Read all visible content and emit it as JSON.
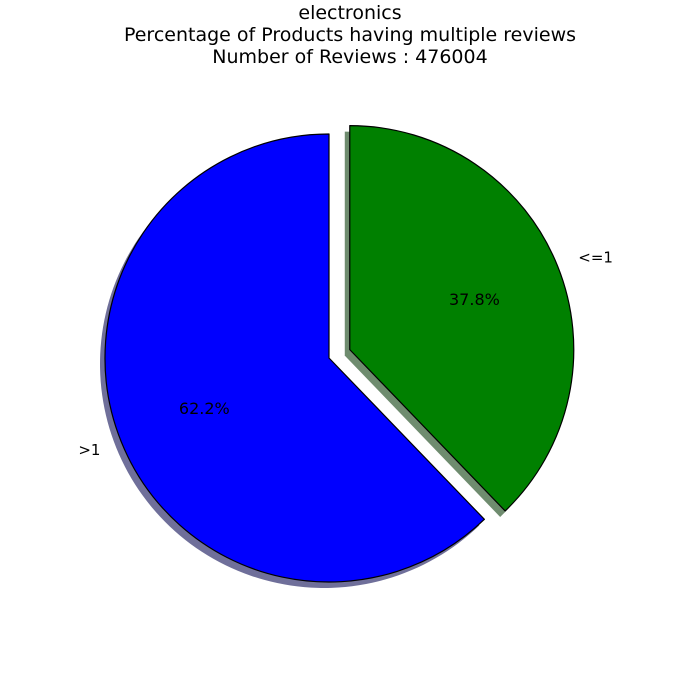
{
  "chart_data": {
    "type": "pie",
    "title": "electronics",
    "subtitle_lines": [
      "Percentage of Products having multiple reviews",
      "Number of Reviews : 476004"
    ],
    "categories": [
      ">1",
      "<=1"
    ],
    "values": [
      62.2,
      37.8
    ],
    "value_labels": [
      "62.2%",
      "37.8%"
    ],
    "colors": [
      "#0000ff",
      "#008000"
    ],
    "shadow_colors": [
      "#6f6f9a",
      "#6f8c6f"
    ],
    "explode": [
      0,
      0.1
    ],
    "start_angle_deg": 90,
    "direction": "counterclockwise",
    "shadow": true,
    "legend": false
  }
}
